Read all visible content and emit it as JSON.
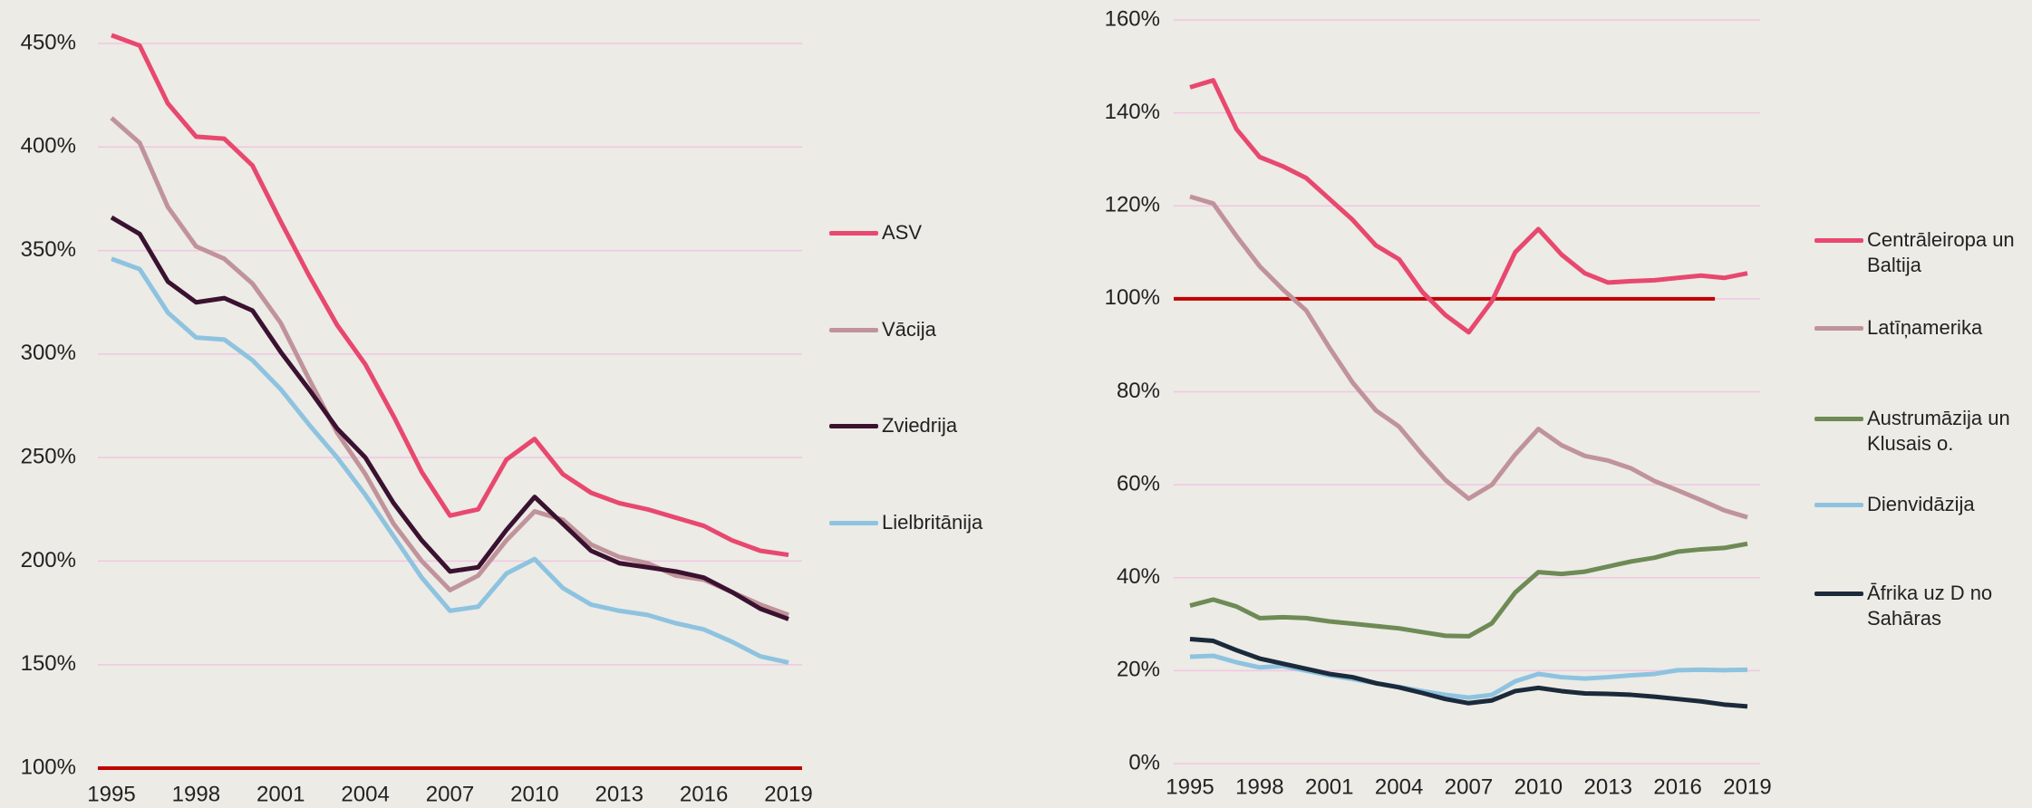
{
  "chart_data": [
    {
      "type": "line",
      "x": [
        1995,
        1996,
        1997,
        1998,
        1999,
        2000,
        2001,
        2002,
        2003,
        2004,
        2005,
        2006,
        2007,
        2008,
        2009,
        2010,
        2011,
        2012,
        2013,
        2014,
        2015,
        2016,
        2017,
        2018,
        2019
      ],
      "xlim": [
        1995,
        2019
      ],
      "xticks": [
        1995,
        1998,
        2001,
        2004,
        2007,
        2010,
        2013,
        2016,
        2019
      ],
      "ylim": [
        100,
        450
      ],
      "yticks": [
        {
          "value": 100,
          "label": "100%"
        },
        {
          "value": 150,
          "label": "150%"
        },
        {
          "value": 200,
          "label": "200%"
        },
        {
          "value": 250,
          "label": "250%"
        },
        {
          "value": 300,
          "label": "300%"
        },
        {
          "value": 350,
          "label": "350%"
        },
        {
          "value": 400,
          "label": "400%"
        },
        {
          "value": 450,
          "label": "450%"
        }
      ],
      "grid": true,
      "reference_line": {
        "value": 100,
        "color": "#c00000",
        "x": [
          1995,
          2019
        ]
      },
      "series": [
        {
          "name": "ASV",
          "color": "#e8486f",
          "values": [
            454,
            449,
            421,
            405,
            404,
            391,
            364,
            338,
            314,
            295,
            270,
            243,
            222,
            225,
            249,
            259,
            242,
            233,
            228,
            225,
            221,
            217,
            210,
            205,
            203
          ]
        },
        {
          "name": "Vācija",
          "color": "#c0939b",
          "values": [
            414,
            402,
            371,
            352,
            346,
            334,
            315,
            288,
            262,
            242,
            218,
            200,
            186,
            193,
            210,
            224,
            220,
            208,
            202,
            199,
            193,
            191,
            185,
            179,
            174
          ]
        },
        {
          "name": "Zviedrija",
          "color": "#3a1230",
          "values": [
            366,
            358,
            335,
            325,
            327,
            321,
            301,
            283,
            264,
            250,
            228,
            210,
            195,
            197,
            215,
            231,
            218,
            205,
            199,
            197,
            195,
            192,
            185,
            177,
            172
          ]
        },
        {
          "name": "Lielbritānija",
          "color": "#8ec3e0",
          "values": [
            346,
            341,
            320,
            308,
            307,
            297,
            283,
            266,
            250,
            232,
            212,
            192,
            176,
            178,
            194,
            201,
            187,
            179,
            176,
            174,
            170,
            167,
            161,
            154,
            151
          ]
        }
      ]
    },
    {
      "type": "line",
      "x": [
        1995,
        1996,
        1997,
        1998,
        1999,
        2000,
        2001,
        2002,
        2003,
        2004,
        2005,
        2006,
        2007,
        2008,
        2009,
        2010,
        2011,
        2012,
        2013,
        2014,
        2015,
        2016,
        2017,
        2018,
        2019
      ],
      "xlim": [
        1995,
        2019
      ],
      "xticks": [
        1995,
        1998,
        2001,
        2004,
        2007,
        2010,
        2013,
        2016,
        2019
      ],
      "ylim": [
        0,
        160
      ],
      "yticks": [
        {
          "value": 0,
          "label": "0%"
        },
        {
          "value": 20,
          "label": "20%"
        },
        {
          "value": 40,
          "label": "40%"
        },
        {
          "value": 60,
          "label": "60%"
        },
        {
          "value": 80,
          "label": "80%"
        },
        {
          "value": 100,
          "label": "100%"
        },
        {
          "value": 120,
          "label": "120%"
        },
        {
          "value": 140,
          "label": "140%"
        },
        {
          "value": 160,
          "label": "160%"
        }
      ],
      "grid": true,
      "reference_line": {
        "value": 100,
        "color": "#c00000",
        "x": [
          1995,
          2017.6
        ]
      },
      "series": [
        {
          "name": "Centrāleiropa un Baltija",
          "color": "#e8486f",
          "values": [
            145.5,
            147,
            136.5,
            130.5,
            128.5,
            126,
            121.5,
            117,
            111.5,
            108.5,
            101.5,
            96.5,
            92.8,
            99.5,
            110,
            115,
            109.5,
            105.5,
            103.5,
            103.8,
            104,
            104.5,
            105,
            104.5,
            105.5
          ]
        },
        {
          "name": "Latīņamerika",
          "color": "#c0939b",
          "values": [
            122,
            120.5,
            113.5,
            107,
            102,
            97.5,
            89.5,
            82,
            76,
            72.5,
            66.5,
            61,
            57,
            60,
            66.5,
            72,
            68.5,
            66.2,
            65.2,
            63.5,
            60.8,
            58.8,
            56.7,
            54.5,
            53
          ]
        },
        {
          "name": "Austrumāzija un Klusais o.",
          "color": "#6e8a55",
          "values": [
            34,
            35.3,
            33.8,
            31.3,
            31.5,
            31.3,
            30.6,
            30.1,
            29.6,
            29.1,
            28.3,
            27.5,
            27.4,
            30.2,
            36.8,
            41.2,
            40.8,
            41.3,
            42.4,
            43.5,
            44.3,
            45.6,
            46.1,
            46.4,
            47.3
          ]
        },
        {
          "name": "Dienvidāzija",
          "color": "#8ec3e0",
          "values": [
            23,
            23.2,
            21.8,
            20.7,
            21,
            20,
            19,
            18.2,
            17.3,
            16.5,
            15.6,
            14.8,
            14.2,
            14.8,
            17.7,
            19.3,
            18.6,
            18.3,
            18.6,
            19,
            19.3,
            20.1,
            20.2,
            20.1,
            20.2
          ]
        },
        {
          "name": "Āfrika uz D no Sahāras",
          "color": "#1b2a3b",
          "values": [
            26.8,
            26.4,
            24.4,
            22.6,
            21.5,
            20.4,
            19.3,
            18.6,
            17.3,
            16.4,
            15.2,
            13.9,
            13,
            13.6,
            15.6,
            16.3,
            15.6,
            15.1,
            15,
            14.8,
            14.4,
            13.9,
            13.4,
            12.7,
            12.3
          ]
        }
      ]
    }
  ]
}
